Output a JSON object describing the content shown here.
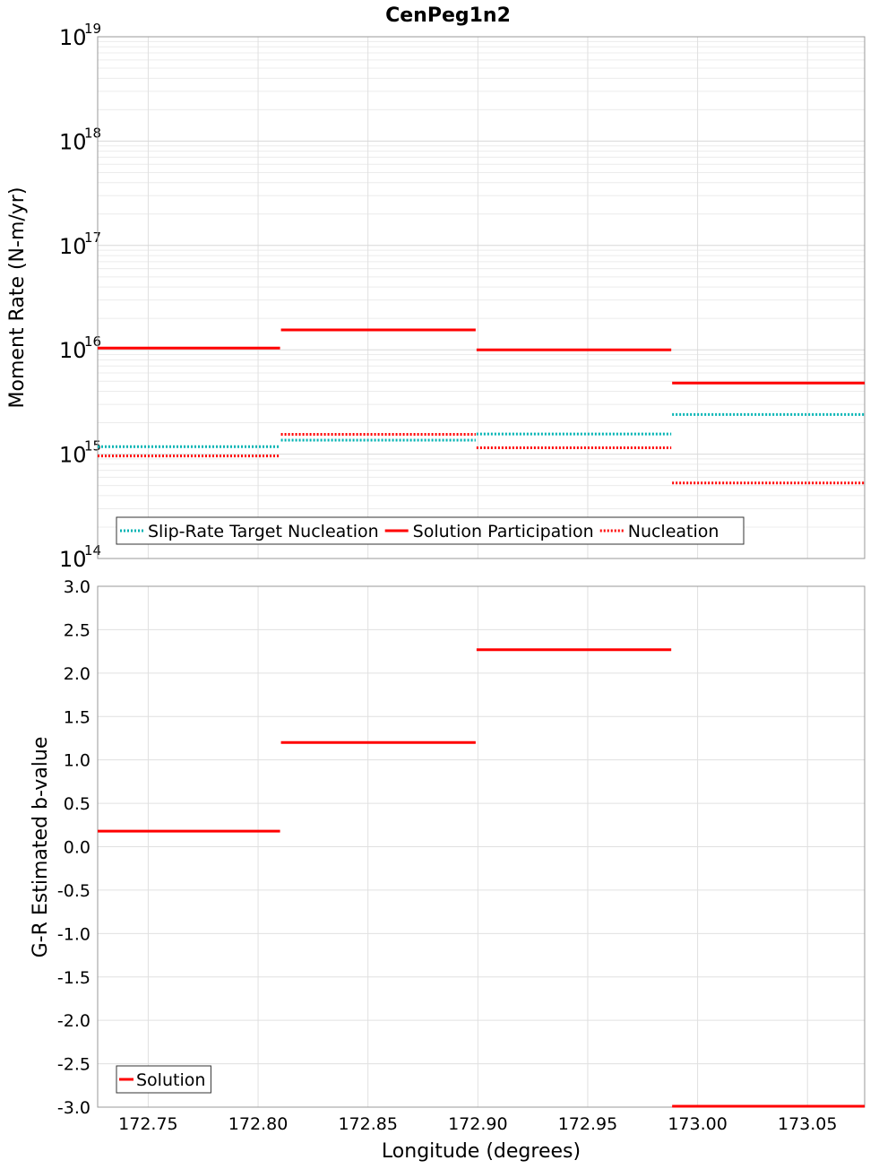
{
  "chart_data": [
    {
      "type": "line",
      "title": "CenPeg1n2",
      "xlabel": "Longitude (degrees)",
      "ylabel": "Moment Rate (N-m/yr)",
      "yscale": "log",
      "xlim": [
        172.727,
        173.076
      ],
      "ylim": [
        100000000000000.0,
        1e+19
      ],
      "y_tick_mantissa": "10",
      "y_ticks": [
        {
          "value": 100000000000000.0,
          "exp": "14"
        },
        {
          "value": 1000000000000000.0,
          "exp": "15"
        },
        {
          "value": 1e+16,
          "exp": "16"
        },
        {
          "value": 1e+17,
          "exp": "17"
        },
        {
          "value": 1e+18,
          "exp": "18"
        },
        {
          "value": 1e+19,
          "exp": "19"
        }
      ],
      "grid": true,
      "legend_position": "bottom-left",
      "x_breaks": [
        172.727,
        172.81,
        172.899,
        172.988,
        173.076
      ],
      "series": [
        {
          "name": "Slip-Rate Target Nucleation",
          "color": "#00b3b3",
          "style": "dotted",
          "values": [
            1180000000000000.0,
            1360000000000000.0,
            1560000000000000.0,
            2400000000000000.0
          ]
        },
        {
          "name": "Solution Participation",
          "color": "#ff0000",
          "style": "solid",
          "values": [
            1.04e+16,
            1.55e+16,
            1e+16,
            4800000000000000.0
          ]
        },
        {
          "name": "Nucleation",
          "color": "#ff0000",
          "style": "dotted",
          "values": [
            960000000000000.0,
            1550000000000000.0,
            1150000000000000.0,
            530000000000000.0
          ]
        }
      ]
    },
    {
      "type": "line",
      "title": "",
      "xlabel": "Longitude (degrees)",
      "ylabel": "G-R Estimated b-value",
      "xlim": [
        172.727,
        173.076
      ],
      "ylim": [
        -3.0,
        3.0
      ],
      "x_ticks": [
        "172.75",
        "172.80",
        "172.85",
        "172.90",
        "172.95",
        "173.00",
        "173.05"
      ],
      "x_tick_values": [
        172.75,
        172.8,
        172.85,
        172.9,
        172.95,
        173.0,
        173.05
      ],
      "y_ticks": [
        "3.0",
        "2.5",
        "2.0",
        "1.5",
        "1.0",
        "0.5",
        "0.0",
        "-0.5",
        "-1.0",
        "-1.5",
        "-2.0",
        "-2.5",
        "-3.0"
      ],
      "y_tick_values": [
        3.0,
        2.5,
        2.0,
        1.5,
        1.0,
        0.5,
        0.0,
        -0.5,
        -1.0,
        -1.5,
        -2.0,
        -2.5,
        -3.0
      ],
      "grid": true,
      "legend_position": "bottom-left",
      "x_breaks": [
        172.727,
        172.81,
        172.899,
        172.988,
        173.076
      ],
      "series": [
        {
          "name": "Solution",
          "color": "#ff0000",
          "style": "solid",
          "values": [
            0.18,
            1.2,
            2.27,
            -3.0
          ]
        }
      ]
    }
  ]
}
